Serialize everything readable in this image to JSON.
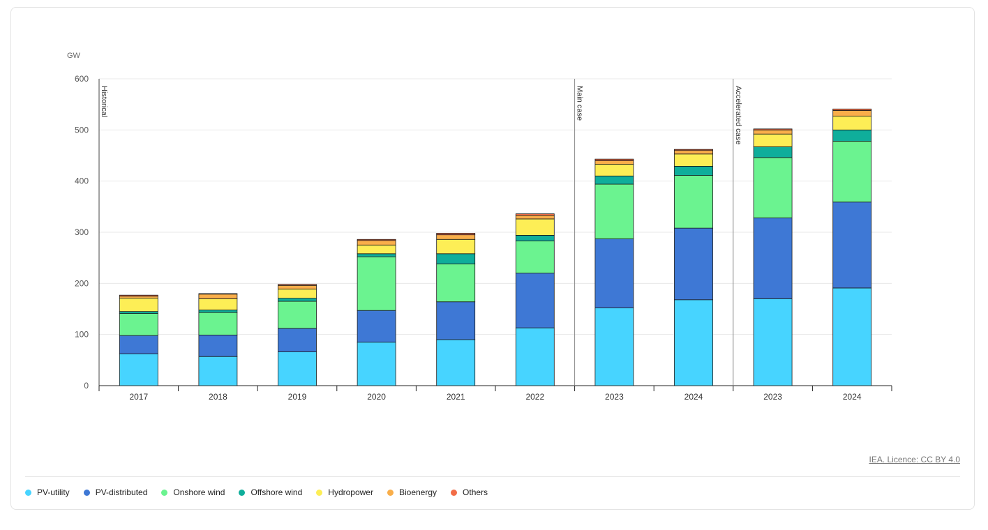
{
  "credit": "IEA. Licence: CC BY 4.0",
  "chart_data": {
    "type": "bar",
    "stacked": true,
    "unit_label": "GW",
    "ylim": [
      0,
      600
    ],
    "yticks": [
      0,
      100,
      200,
      300,
      400,
      500,
      600
    ],
    "grid": true,
    "legend_position": "bottom-left",
    "categories": [
      "2017",
      "2018",
      "2019",
      "2020",
      "2021",
      "2022",
      "2023",
      "2024",
      "2023",
      "2024"
    ],
    "annotations": [
      {
        "label": "Historical",
        "start_index": 0
      },
      {
        "label": "Main case",
        "start_index": 6
      },
      {
        "label": "Accelerated case",
        "start_index": 8
      }
    ],
    "series": [
      {
        "name": "PV-utility",
        "color": "#47d4ff",
        "values": [
          62,
          57,
          66,
          85,
          90,
          113,
          152,
          168,
          170,
          191
        ]
      },
      {
        "name": "PV-distributed",
        "color": "#3e78d5",
        "values": [
          36,
          42,
          46,
          62,
          74,
          107,
          135,
          140,
          158,
          168
        ]
      },
      {
        "name": "Onshore wind",
        "color": "#6bf390",
        "values": [
          43,
          44,
          53,
          105,
          74,
          63,
          107,
          103,
          118,
          119
        ]
      },
      {
        "name": "Offshore wind",
        "color": "#0fae9b",
        "values": [
          4,
          5,
          6,
          6,
          20,
          11,
          16,
          18,
          21,
          22
        ]
      },
      {
        "name": "Hydropower",
        "color": "#fdee56",
        "values": [
          26,
          22,
          18,
          17,
          28,
          32,
          23,
          24,
          25,
          27
        ]
      },
      {
        "name": "Bioenergy",
        "color": "#f9ae4a",
        "values": [
          4,
          9,
          7,
          9,
          9,
          7,
          7,
          7,
          8,
          11
        ]
      },
      {
        "name": "Others",
        "color": "#f26d47",
        "values": [
          2,
          1,
          2,
          2,
          3,
          3,
          3,
          2,
          2,
          3
        ]
      }
    ]
  }
}
